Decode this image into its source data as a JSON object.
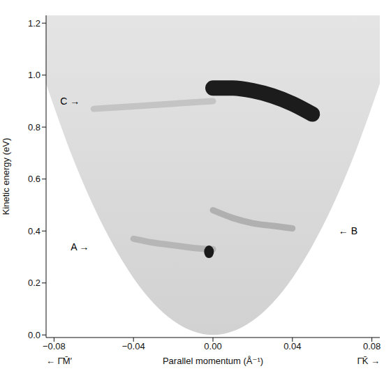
{
  "chart_data": {
    "type": "line",
    "x_label": "Parallel momentum (Å⁻¹)",
    "x_label_left": "← Γ̄M̄′",
    "x_label_right": "Γ̄K̄ →",
    "y_label": "Kinetic energy (eV)",
    "xlim": [
      -0.084,
      0.084
    ],
    "xticks": [
      {
        "value": -0.08,
        "label": "−0.08"
      },
      {
        "value": -0.04,
        "label": "−0.04"
      },
      {
        "value": 0,
        "label": "0.00"
      },
      0.04,
      0.08
    ],
    "ylim": [
      -0.01,
      1.23
    ],
    "yticks": [
      {
        "value": 0,
        "label": "0.0"
      },
      0.2,
      0.4,
      0.6,
      0.8,
      {
        "value": 1,
        "label": "1.0"
      },
      1.2
    ],
    "grid": false,
    "series": [
      {
        "type": "area",
        "color": "#cfcfcf",
        "x": [
          -0.084,
          -0.07,
          -0.06,
          -0.05,
          -0.04,
          -0.03,
          -0.02,
          -0.01,
          0,
          0.01,
          0.02,
          0.03,
          0.04,
          0.05,
          0.06,
          0.07,
          0.084
        ],
        "values": [
          0.967,
          0.671,
          0.493,
          0.343,
          0.219,
          0.123,
          0.055,
          0.014,
          0,
          0.014,
          0.055,
          0.123,
          0.219,
          0.343,
          0.493,
          0.671,
          0.967
        ]
      },
      {
        "type": "line",
        "color": "#b8b8b8",
        "x": [
          -0.06,
          -0.04,
          -0.02,
          0
        ],
        "values": [
          0.87,
          0.88,
          0.89,
          0.9
        ]
      },
      {
        "type": "line",
        "color": "#111111",
        "x": [
          0,
          0.01,
          0.02,
          0.03,
          0.04,
          0.05
        ],
        "values": [
          0.95,
          0.95,
          0.94,
          0.92,
          0.89,
          0.85
        ]
      },
      {
        "type": "line",
        "color": "#a8a8a8",
        "x": [
          -0.04,
          -0.03,
          -0.02,
          -0.01,
          0
        ],
        "values": [
          0.37,
          0.355,
          0.345,
          0.335,
          0.33
        ]
      },
      {
        "type": "scatter",
        "color": "#1a1a1a",
        "x": [
          -0.002
        ],
        "values": [
          0.32
        ]
      },
      {
        "type": "line",
        "color": "#a0a0a0",
        "x": [
          0,
          0.01,
          0.02,
          0.03,
          0.04
        ],
        "values": [
          0.48,
          0.45,
          0.43,
          0.42,
          0.41
        ]
      }
    ],
    "annotations": [
      {
        "text": "C →",
        "x": -0.072,
        "y": 0.9
      },
      {
        "text": "A →",
        "x": -0.067,
        "y": 0.34
      },
      {
        "text": "← B",
        "x": 0.068,
        "y": 0.4
      }
    ]
  }
}
